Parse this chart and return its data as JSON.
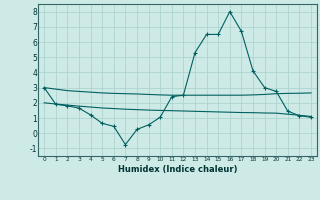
{
  "title": "",
  "xlabel": "Humidex (Indice chaleur)",
  "background_color": "#ceeae7",
  "grid_color": "#aed4d0",
  "line_color": "#006060",
  "xlim": [
    -0.5,
    23.5
  ],
  "ylim": [
    -1.5,
    8.5
  ],
  "yticks": [
    -1,
    0,
    1,
    2,
    3,
    4,
    5,
    6,
    7,
    8
  ],
  "xtick_labels": [
    "0",
    "1",
    "2",
    "3",
    "4",
    "5",
    "6",
    "7",
    "8",
    "9",
    "10",
    "11",
    "12",
    "13",
    "14",
    "15",
    "16",
    "17",
    "18",
    "19",
    "20",
    "21",
    "22",
    "23"
  ],
  "line1_x": [
    0,
    1,
    2,
    3,
    4,
    5,
    6,
    7,
    8,
    9,
    10,
    11,
    12,
    13,
    14,
    15,
    16,
    17,
    18,
    19,
    20,
    21,
    22,
    23
  ],
  "line1_y": [
    3.0,
    1.9,
    1.8,
    1.65,
    1.2,
    0.65,
    0.45,
    -0.75,
    0.25,
    0.55,
    1.05,
    2.4,
    2.5,
    5.3,
    6.5,
    6.5,
    8.0,
    6.7,
    4.1,
    3.0,
    2.75,
    1.45,
    1.15,
    1.05
  ],
  "line2_x": [
    0,
    1,
    2,
    3,
    4,
    5,
    6,
    7,
    8,
    9,
    10,
    11,
    12,
    13,
    14,
    15,
    16,
    17,
    18,
    19,
    20,
    21,
    22,
    23
  ],
  "line2_y": [
    3.0,
    2.9,
    2.8,
    2.75,
    2.7,
    2.65,
    2.62,
    2.6,
    2.58,
    2.55,
    2.52,
    2.5,
    2.5,
    2.5,
    2.5,
    2.5,
    2.5,
    2.5,
    2.52,
    2.55,
    2.6,
    2.62,
    2.63,
    2.65
  ],
  "line3_x": [
    0,
    1,
    2,
    3,
    4,
    5,
    6,
    7,
    8,
    9,
    10,
    11,
    12,
    13,
    14,
    15,
    16,
    17,
    18,
    19,
    20,
    21,
    22,
    23
  ],
  "line3_y": [
    2.0,
    1.92,
    1.85,
    1.78,
    1.72,
    1.66,
    1.62,
    1.58,
    1.55,
    1.52,
    1.5,
    1.48,
    1.46,
    1.44,
    1.42,
    1.4,
    1.38,
    1.36,
    1.35,
    1.33,
    1.32,
    1.25,
    1.18,
    1.1
  ]
}
